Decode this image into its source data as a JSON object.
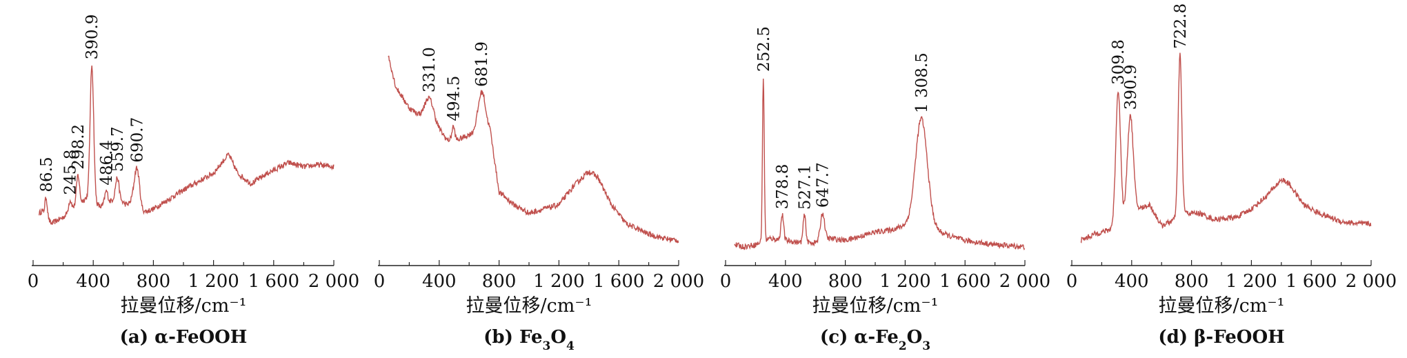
{
  "colors": {
    "line": "#c0504d",
    "axis": "#222222",
    "text": "#111111"
  },
  "chart_data": [
    {
      "type": "line",
      "panel": "a",
      "caption": {
        "prefix": "(a) ",
        "main": "α-FeOOH",
        "parts": [
          {
            "t": "(a) α-FeOOH",
            "sub": false
          }
        ]
      },
      "xlabel": "拉曼位移/cm⁻¹",
      "xlim": [
        0,
        2000
      ],
      "xticks": [
        0,
        400,
        800,
        1200,
        1600,
        2000
      ],
      "xtick_labels": [
        "0",
        "400",
        "800",
        "1 200",
        "1 600",
        "2 000"
      ],
      "ylim": [
        0,
        100
      ],
      "y_axis_shown": false,
      "baseline": [
        [
          40,
          20
        ],
        [
          60,
          21
        ],
        [
          120,
          15
        ],
        [
          200,
          18
        ],
        [
          260,
          22
        ],
        [
          350,
          27
        ],
        [
          450,
          23
        ],
        [
          520,
          26
        ],
        [
          560,
          27
        ],
        [
          620,
          24
        ],
        [
          660,
          25
        ],
        [
          720,
          20
        ],
        [
          800,
          22
        ],
        [
          1000,
          31
        ],
        [
          1200,
          39
        ],
        [
          1300,
          48
        ],
        [
          1360,
          39
        ],
        [
          1450,
          34
        ],
        [
          1560,
          39
        ],
        [
          1700,
          44
        ],
        [
          1800,
          42
        ],
        [
          1900,
          43
        ],
        [
          2000,
          42
        ]
      ],
      "peaks": [
        {
          "label": "86.5",
          "x": 86.5,
          "h": 9,
          "w": 8
        },
        {
          "label": "245.8",
          "x": 245.8,
          "h": 5,
          "w": 10
        },
        {
          "label": "298.2",
          "x": 298.2,
          "h": 14,
          "w": 10
        },
        {
          "label": "390.9",
          "x": 390.9,
          "h": 65,
          "w": 12
        },
        {
          "label": "486.4",
          "x": 486.4,
          "h": 6,
          "w": 10
        },
        {
          "label": "559.7",
          "x": 559.7,
          "h": 10,
          "w": 12
        },
        {
          "label": "690.7",
          "x": 690.7,
          "h": 19,
          "w": 18
        }
      ]
    },
    {
      "type": "line",
      "panel": "b",
      "caption": {
        "parts": [
          {
            "t": "(b) Fe",
            "sub": false
          },
          {
            "t": "3",
            "sub": true
          },
          {
            "t": "O",
            "sub": false
          },
          {
            "t": "4",
            "sub": true
          }
        ]
      },
      "xlabel": "拉曼位移/cm⁻¹",
      "xlim": [
        0,
        2000
      ],
      "xticks": [
        0,
        400,
        800,
        1200,
        1600,
        2000
      ],
      "xtick_labels": [
        "0",
        "400",
        "800",
        "1 200",
        "1 600",
        "2 000"
      ],
      "ylim": [
        0,
        100
      ],
      "y_axis_shown": false,
      "baseline": [
        [
          60,
          95
        ],
        [
          110,
          80
        ],
        [
          200,
          70
        ],
        [
          280,
          66
        ],
        [
          360,
          64
        ],
        [
          450,
          55
        ],
        [
          500,
          54
        ],
        [
          560,
          56
        ],
        [
          620,
          58
        ],
        [
          700,
          65
        ],
        [
          740,
          60
        ],
        [
          800,
          30
        ],
        [
          900,
          24
        ],
        [
          1000,
          20
        ],
        [
          1100,
          22
        ],
        [
          1200,
          24
        ],
        [
          1300,
          33
        ],
        [
          1400,
          40
        ],
        [
          1460,
          37
        ],
        [
          1550,
          24
        ],
        [
          1650,
          15
        ],
        [
          1800,
          10
        ],
        [
          1900,
          8
        ],
        [
          2000,
          7
        ]
      ],
      "peaks": [
        {
          "label": "331.0",
          "x": 331.0,
          "h": 10,
          "w": 28
        },
        {
          "label": "494.5",
          "x": 494.5,
          "h": 7,
          "w": 10
        },
        {
          "label": "681.9",
          "x": 681.9,
          "h": 14,
          "w": 22
        }
      ]
    },
    {
      "type": "line",
      "panel": "c",
      "caption": {
        "parts": [
          {
            "t": "(c) α-Fe",
            "sub": false
          },
          {
            "t": "2",
            "sub": true
          },
          {
            "t": "O",
            "sub": false
          },
          {
            "t": "3",
            "sub": true
          }
        ]
      },
      "xlabel": "拉曼位移/cm⁻¹",
      "xlim": [
        0,
        2000
      ],
      "xticks": [
        0,
        400,
        800,
        1200,
        1600,
        2000
      ],
      "xtick_labels": [
        "0",
        "400",
        "800",
        "1 200",
        "1 600",
        "2 000"
      ],
      "ylim": [
        0,
        100
      ],
      "y_axis_shown": false,
      "baseline": [
        [
          60,
          5
        ],
        [
          120,
          4
        ],
        [
          200,
          5
        ],
        [
          300,
          8
        ],
        [
          400,
          7
        ],
        [
          500,
          6
        ],
        [
          600,
          6
        ],
        [
          700,
          8
        ],
        [
          800,
          7
        ],
        [
          900,
          9
        ],
        [
          1000,
          11
        ],
        [
          1100,
          12
        ],
        [
          1200,
          14
        ],
        [
          1400,
          12
        ],
        [
          1500,
          9
        ],
        [
          1600,
          7
        ],
        [
          1800,
          5
        ],
        [
          2000,
          4
        ]
      ],
      "peaks": [
        {
          "label": "252.5",
          "x": 252.5,
          "h": 78,
          "w": 6
        },
        {
          "label": "378.8",
          "x": 378.8,
          "h": 12,
          "w": 9
        },
        {
          "label": "527.1",
          "x": 527.1,
          "h": 13,
          "w": 9
        },
        {
          "label": "647.7",
          "x": 647.7,
          "h": 13,
          "w": 14
        },
        {
          "label": "1 308.5",
          "x": 1308.5,
          "h": 52,
          "w": 40
        }
      ]
    },
    {
      "type": "line",
      "panel": "d",
      "caption": {
        "parts": [
          {
            "t": "(d) β-FeOOH",
            "sub": false
          }
        ]
      },
      "xlabel": "拉曼位移/cm⁻¹",
      "xlim": [
        0,
        2000
      ],
      "xticks": [
        0,
        400,
        800,
        1200,
        1600,
        2000
      ],
      "xtick_labels": [
        "0",
        "400",
        "800",
        "1 200",
        "1 600",
        "2 000"
      ],
      "ylim": [
        0,
        100
      ],
      "y_axis_shown": false,
      "baseline": [
        [
          60,
          7
        ],
        [
          150,
          10
        ],
        [
          250,
          12
        ],
        [
          350,
          16
        ],
        [
          450,
          22
        ],
        [
          520,
          24
        ],
        [
          600,
          14
        ],
        [
          660,
          16
        ],
        [
          760,
          20
        ],
        [
          850,
          20
        ],
        [
          950,
          17
        ],
        [
          1100,
          18
        ],
        [
          1200,
          22
        ],
        [
          1300,
          28
        ],
        [
          1400,
          36
        ],
        [
          1450,
          34
        ],
        [
          1550,
          24
        ],
        [
          1650,
          20
        ],
        [
          1800,
          16
        ],
        [
          1900,
          15
        ],
        [
          2000,
          15
        ]
      ],
      "peaks": [
        {
          "label": "309.8",
          "x": 309.8,
          "h": 64,
          "w": 16
        },
        {
          "label": "390.9",
          "x": 390.9,
          "h": 48,
          "w": 20
        },
        {
          "label": "722.8",
          "x": 722.8,
          "h": 77,
          "w": 12
        }
      ]
    }
  ]
}
